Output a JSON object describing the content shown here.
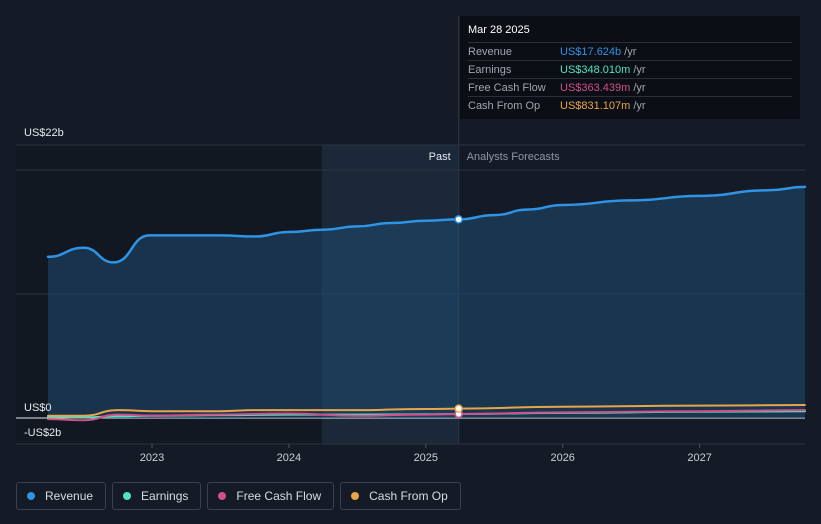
{
  "chart_data": {
    "type": "line",
    "y_axis_labels": [
      "US$22b",
      "US$0",
      "-US$2b"
    ],
    "ylim": [
      -2,
      22
    ],
    "x_ticks": [
      {
        "label": "2023",
        "value": 2023.0
      },
      {
        "label": "2024",
        "value": 2024.0
      },
      {
        "label": "2025",
        "value": 2025.0
      },
      {
        "label": "2026",
        "value": 2026.0
      },
      {
        "label": "2027",
        "value": 2027.0
      }
    ],
    "xlim": [
      2022.24,
      2027.77
    ],
    "past_label": "Past",
    "forecast_label": "Analysts Forecasts",
    "past_region_start": 2024.24,
    "divider_x": 2025.24,
    "series": [
      {
        "name": "Revenue",
        "color": "#2f93e6",
        "x": [
          2022.24,
          2022.5,
          2022.72,
          2022.98,
          2023.5,
          2023.75,
          2024.0,
          2024.25,
          2024.5,
          2024.75,
          2025.0,
          2025.24,
          2025.5,
          2025.75,
          2026.0,
          2026.5,
          2027.0,
          2027.5,
          2027.77
        ],
        "values": [
          14.3,
          15.1,
          13.8,
          16.2,
          16.2,
          16.1,
          16.5,
          16.7,
          17.0,
          17.3,
          17.5,
          17.62,
          18.0,
          18.5,
          18.9,
          19.3,
          19.7,
          20.2,
          20.5
        ]
      },
      {
        "name": "Earnings",
        "color": "#50e3c2",
        "x": [
          2022.24,
          2022.5,
          2022.75,
          2023.0,
          2023.5,
          2024.0,
          2024.5,
          2025.0,
          2025.24,
          2026.0,
          2027.0,
          2027.77
        ],
        "values": [
          0.1,
          0.05,
          0.15,
          0.2,
          0.25,
          0.3,
          0.3,
          0.33,
          0.35,
          0.45,
          0.55,
          0.6
        ]
      },
      {
        "name": "Free Cash Flow",
        "color": "#d14f8a",
        "x": [
          2022.24,
          2022.5,
          2022.75,
          2023.0,
          2023.5,
          2024.0,
          2024.5,
          2025.0,
          2025.24,
          2026.0,
          2027.0,
          2027.77
        ],
        "values": [
          -0.1,
          -0.2,
          0.3,
          0.2,
          0.3,
          0.4,
          0.2,
          0.3,
          0.36,
          0.5,
          0.6,
          0.7
        ]
      },
      {
        "name": "Cash From Op",
        "color": "#e8a54b",
        "x": [
          2022.24,
          2022.5,
          2022.75,
          2023.0,
          2023.5,
          2023.75,
          2024.0,
          2024.5,
          2025.0,
          2025.24,
          2026.0,
          2027.0,
          2027.77
        ],
        "values": [
          0.2,
          0.2,
          0.7,
          0.6,
          0.6,
          0.7,
          0.7,
          0.7,
          0.8,
          0.83,
          1.0,
          1.1,
          1.15
        ]
      }
    ]
  },
  "tooltip": {
    "date": "Mar 28 2025",
    "rows": [
      {
        "label": "Revenue",
        "value": "US$17.624b",
        "unit": "/yr",
        "color": "#2f93e6"
      },
      {
        "label": "Earnings",
        "value": "US$348.010m",
        "unit": "/yr",
        "color": "#50e3c2"
      },
      {
        "label": "Free Cash Flow",
        "value": "US$363.439m",
        "unit": "/yr",
        "color": "#d14f8a"
      },
      {
        "label": "Cash From Op",
        "value": "US$831.107m",
        "unit": "/yr",
        "color": "#e8a54b"
      }
    ]
  },
  "legend": [
    {
      "label": "Revenue",
      "color": "#2f93e6"
    },
    {
      "label": "Earnings",
      "color": "#50e3c2"
    },
    {
      "label": "Free Cash Flow",
      "color": "#d14f8a"
    },
    {
      "label": "Cash From Op",
      "color": "#e8a54b"
    }
  ]
}
